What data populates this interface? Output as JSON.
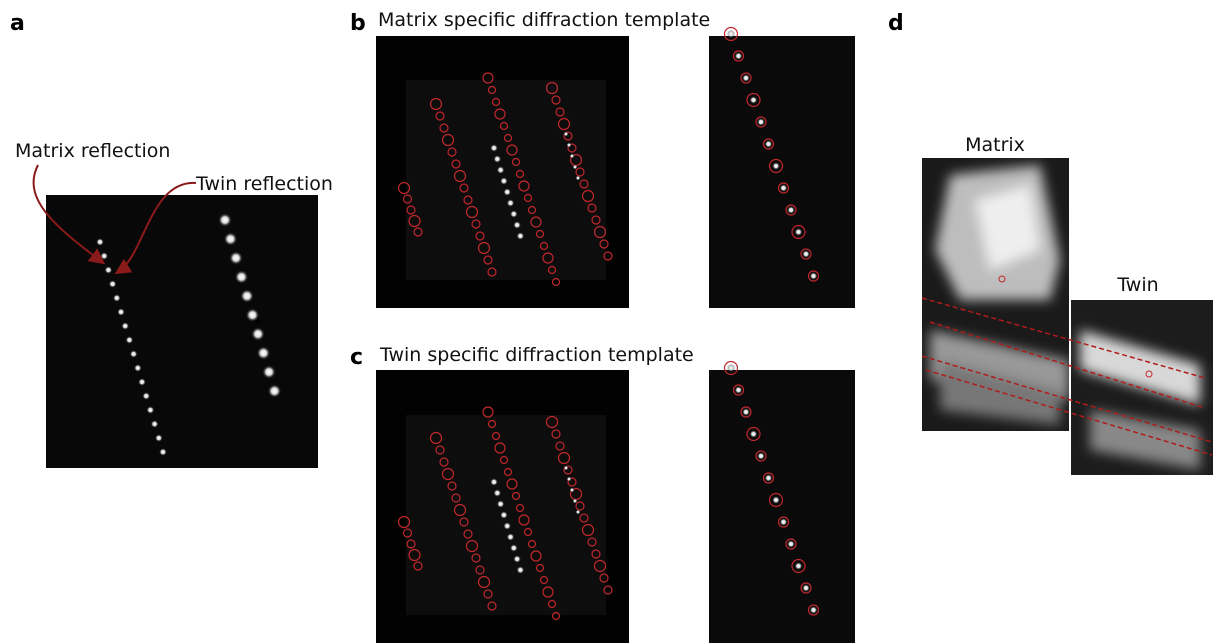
{
  "panels": {
    "a": {
      "label": "a",
      "annotations": [
        "Matrix reflection",
        "Twin reflection"
      ]
    },
    "b": {
      "label": "b",
      "title": "Matrix specific diffraction template"
    },
    "c": {
      "label": "c",
      "title": "Twin specific diffraction template"
    },
    "d": {
      "label": "d",
      "images": [
        "Matrix",
        "Twin"
      ]
    }
  }
}
